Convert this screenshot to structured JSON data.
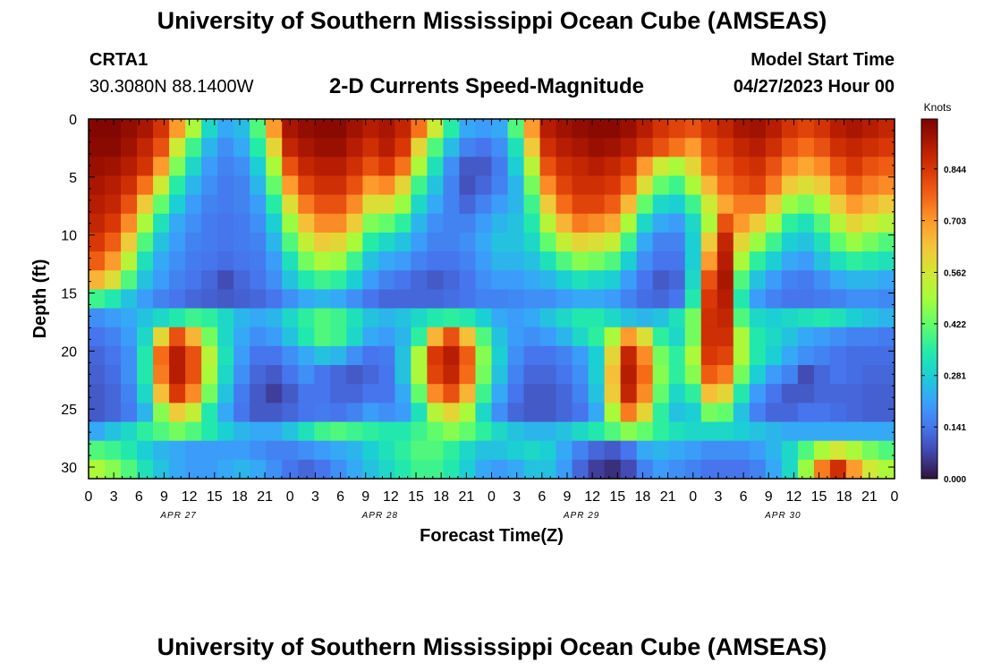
{
  "header": {
    "title": "University of Southern Mississippi Ocean Cube (AMSEAS)",
    "station": "CRTA1",
    "coords": "30.3080N  88.1400W",
    "subtitle": "2-D Currents Speed-Magnitude",
    "model_label": "Model Start Time",
    "model_time": "04/27/2023 Hour 00"
  },
  "footer": {
    "title": "University of Southern Mississippi Ocean Cube (AMSEAS)"
  },
  "colors": {
    "colormap": [
      "#30123b",
      "#4145ab",
      "#4675ed",
      "#39a2fc",
      "#1bcfd4",
      "#24eca6",
      "#61fc6c",
      "#a4fc3b",
      "#d1e834",
      "#f3c63a",
      "#fe9b2d",
      "#f36315",
      "#d93806",
      "#b11901",
      "#7a0402"
    ]
  },
  "chart_data": {
    "type": "heatmap",
    "title": "2-D Currents Speed-Magnitude",
    "xlabel": "Forecast Time(Z)",
    "ylabel": "Depth (ft)",
    "colorbar_label": "Knots",
    "colorbar_ticks": [
      "0.844",
      "0.703",
      "0.562",
      "0.422",
      "0.281",
      "0.141",
      "0.000"
    ],
    "colorbar_values": [
      0.844,
      0.703,
      0.562,
      0.422,
      0.281,
      0.141,
      0.0
    ],
    "zlim": [
      0,
      0.98
    ],
    "x_tick_labels": [
      "0",
      "3",
      "6",
      "9",
      "12",
      "15",
      "18",
      "21",
      "0",
      "3",
      "6",
      "9",
      "12",
      "15",
      "18",
      "21",
      "0",
      "3",
      "6",
      "9",
      "12",
      "15",
      "18",
      "21",
      "0",
      "3",
      "6",
      "9",
      "12",
      "15",
      "18",
      "21",
      "0"
    ],
    "x_hours": [
      0,
      3,
      6,
      9,
      12,
      15,
      18,
      21,
      24,
      27,
      30,
      33,
      36,
      39,
      42,
      45,
      48,
      51,
      54,
      57,
      60,
      63,
      66,
      69,
      72,
      75,
      78,
      81,
      84,
      87,
      90,
      93,
      96
    ],
    "day_labels": [
      {
        "label": "APR 27",
        "hour": 12
      },
      {
        "label": "APR 28",
        "hour": 36
      },
      {
        "label": "APR 29",
        "hour": 60
      },
      {
        "label": "APR 30",
        "hour": 84
      }
    ],
    "y_tick_labels": [
      "0",
      "5",
      "10",
      "15",
      "20",
      "25",
      "30"
    ],
    "y_values": [
      0,
      5,
      10,
      15,
      20,
      25,
      30
    ],
    "xlim": [
      0,
      96
    ],
    "ylim": [
      31,
      0
    ],
    "speed_knots": [
      [
        0.97,
        0.97,
        0.95,
        0.92,
        0.85,
        0.7,
        0.5,
        0.3,
        0.22,
        0.25,
        0.4,
        0.7,
        0.92,
        0.95,
        0.96,
        0.96,
        0.93,
        0.9,
        0.92,
        0.88,
        0.75,
        0.55,
        0.35,
        0.22,
        0.2,
        0.22,
        0.4,
        0.7,
        0.9,
        0.93,
        0.95,
        0.96,
        0.96,
        0.94,
        0.9,
        0.85,
        0.82,
        0.8,
        0.85,
        0.88,
        0.92,
        0.93,
        0.9,
        0.85,
        0.82,
        0.85,
        0.9,
        0.92,
        0.9,
        0.88
      ],
      [
        0.96,
        0.96,
        0.93,
        0.88,
        0.8,
        0.55,
        0.38,
        0.24,
        0.18,
        0.22,
        0.35,
        0.6,
        0.88,
        0.92,
        0.94,
        0.94,
        0.9,
        0.86,
        0.9,
        0.84,
        0.6,
        0.4,
        0.25,
        0.16,
        0.14,
        0.18,
        0.32,
        0.62,
        0.86,
        0.9,
        0.92,
        0.94,
        0.93,
        0.9,
        0.85,
        0.8,
        0.75,
        0.7,
        0.8,
        0.84,
        0.88,
        0.9,
        0.86,
        0.8,
        0.76,
        0.8,
        0.86,
        0.88,
        0.86,
        0.84
      ],
      [
        0.94,
        0.93,
        0.9,
        0.85,
        0.7,
        0.45,
        0.3,
        0.2,
        0.16,
        0.18,
        0.28,
        0.5,
        0.8,
        0.88,
        0.9,
        0.9,
        0.86,
        0.8,
        0.84,
        0.75,
        0.5,
        0.32,
        0.18,
        0.1,
        0.1,
        0.15,
        0.28,
        0.52,
        0.8,
        0.86,
        0.88,
        0.9,
        0.88,
        0.84,
        0.7,
        0.55,
        0.5,
        0.6,
        0.75,
        0.8,
        0.84,
        0.86,
        0.8,
        0.72,
        0.68,
        0.72,
        0.8,
        0.84,
        0.8,
        0.78
      ],
      [
        0.92,
        0.9,
        0.86,
        0.75,
        0.55,
        0.35,
        0.24,
        0.18,
        0.15,
        0.16,
        0.24,
        0.42,
        0.7,
        0.82,
        0.86,
        0.86,
        0.8,
        0.7,
        0.72,
        0.6,
        0.38,
        0.26,
        0.16,
        0.09,
        0.12,
        0.16,
        0.24,
        0.44,
        0.72,
        0.82,
        0.86,
        0.86,
        0.84,
        0.76,
        0.58,
        0.42,
        0.38,
        0.5,
        0.65,
        0.76,
        0.8,
        0.82,
        0.74,
        0.62,
        0.58,
        0.62,
        0.72,
        0.78,
        0.74,
        0.72
      ],
      [
        0.9,
        0.88,
        0.8,
        0.62,
        0.42,
        0.28,
        0.2,
        0.16,
        0.15,
        0.16,
        0.2,
        0.35,
        0.58,
        0.74,
        0.8,
        0.8,
        0.72,
        0.58,
        0.58,
        0.48,
        0.3,
        0.22,
        0.16,
        0.12,
        0.16,
        0.2,
        0.24,
        0.38,
        0.62,
        0.76,
        0.82,
        0.82,
        0.78,
        0.65,
        0.42,
        0.3,
        0.28,
        0.38,
        0.55,
        0.68,
        0.74,
        0.74,
        0.62,
        0.48,
        0.44,
        0.5,
        0.62,
        0.7,
        0.66,
        0.62
      ],
      [
        0.88,
        0.84,
        0.72,
        0.5,
        0.32,
        0.22,
        0.18,
        0.15,
        0.14,
        0.15,
        0.18,
        0.28,
        0.48,
        0.64,
        0.72,
        0.72,
        0.62,
        0.45,
        0.42,
        0.36,
        0.24,
        0.18,
        0.16,
        0.16,
        0.2,
        0.24,
        0.26,
        0.34,
        0.52,
        0.66,
        0.74,
        0.72,
        0.68,
        0.5,
        0.3,
        0.22,
        0.2,
        0.3,
        0.5,
        0.8,
        0.7,
        0.62,
        0.5,
        0.36,
        0.32,
        0.4,
        0.52,
        0.6,
        0.56,
        0.52
      ],
      [
        0.84,
        0.78,
        0.62,
        0.4,
        0.26,
        0.2,
        0.16,
        0.15,
        0.14,
        0.15,
        0.16,
        0.24,
        0.4,
        0.54,
        0.62,
        0.6,
        0.5,
        0.35,
        0.3,
        0.26,
        0.2,
        0.16,
        0.16,
        0.18,
        0.22,
        0.26,
        0.26,
        0.3,
        0.42,
        0.54,
        0.6,
        0.58,
        0.54,
        0.38,
        0.22,
        0.16,
        0.16,
        0.28,
        0.62,
        0.88,
        0.6,
        0.48,
        0.38,
        0.28,
        0.26,
        0.32,
        0.42,
        0.48,
        0.44,
        0.4
      ],
      [
        0.78,
        0.7,
        0.52,
        0.32,
        0.22,
        0.18,
        0.15,
        0.14,
        0.13,
        0.14,
        0.15,
        0.2,
        0.32,
        0.44,
        0.5,
        0.48,
        0.38,
        0.26,
        0.22,
        0.2,
        0.16,
        0.14,
        0.14,
        0.16,
        0.2,
        0.24,
        0.24,
        0.26,
        0.32,
        0.4,
        0.46,
        0.44,
        0.4,
        0.28,
        0.18,
        0.14,
        0.14,
        0.28,
        0.7,
        0.9,
        0.5,
        0.36,
        0.28,
        0.22,
        0.2,
        0.26,
        0.32,
        0.36,
        0.34,
        0.32
      ],
      [
        0.66,
        0.58,
        0.4,
        0.26,
        0.2,
        0.16,
        0.14,
        0.12,
        0.08,
        0.12,
        0.14,
        0.18,
        0.26,
        0.34,
        0.38,
        0.36,
        0.28,
        0.2,
        0.16,
        0.14,
        0.12,
        0.1,
        0.12,
        0.14,
        0.18,
        0.2,
        0.2,
        0.22,
        0.24,
        0.28,
        0.32,
        0.3,
        0.28,
        0.2,
        0.14,
        0.1,
        0.12,
        0.3,
        0.8,
        0.92,
        0.4,
        0.26,
        0.2,
        0.16,
        0.15,
        0.18,
        0.22,
        0.24,
        0.24,
        0.22
      ],
      [
        0.38,
        0.34,
        0.26,
        0.2,
        0.16,
        0.14,
        0.12,
        0.11,
        0.1,
        0.11,
        0.12,
        0.14,
        0.18,
        0.22,
        0.24,
        0.22,
        0.18,
        0.14,
        0.12,
        0.12,
        0.12,
        0.12,
        0.13,
        0.14,
        0.16,
        0.16,
        0.17,
        0.18,
        0.18,
        0.2,
        0.22,
        0.22,
        0.2,
        0.16,
        0.13,
        0.12,
        0.14,
        0.34,
        0.84,
        0.9,
        0.34,
        0.2,
        0.16,
        0.14,
        0.14,
        0.15,
        0.16,
        0.18,
        0.18,
        0.17
      ],
      [
        0.18,
        0.2,
        0.22,
        0.26,
        0.3,
        0.34,
        0.38,
        0.36,
        0.3,
        0.24,
        0.22,
        0.24,
        0.3,
        0.36,
        0.4,
        0.38,
        0.32,
        0.26,
        0.24,
        0.26,
        0.3,
        0.34,
        0.36,
        0.34,
        0.28,
        0.22,
        0.2,
        0.22,
        0.26,
        0.3,
        0.34,
        0.34,
        0.3,
        0.26,
        0.24,
        0.26,
        0.32,
        0.44,
        0.86,
        0.88,
        0.4,
        0.3,
        0.28,
        0.3,
        0.32,
        0.34,
        0.32,
        0.28,
        0.26,
        0.24
      ],
      [
        0.14,
        0.16,
        0.2,
        0.3,
        0.6,
        0.8,
        0.66,
        0.44,
        0.3,
        0.22,
        0.18,
        0.2,
        0.26,
        0.34,
        0.4,
        0.38,
        0.3,
        0.22,
        0.2,
        0.24,
        0.36,
        0.66,
        0.8,
        0.64,
        0.4,
        0.26,
        0.2,
        0.18,
        0.2,
        0.24,
        0.3,
        0.36,
        0.5,
        0.7,
        0.58,
        0.36,
        0.3,
        0.44,
        0.86,
        0.86,
        0.5,
        0.34,
        0.3,
        0.26,
        0.22,
        0.2,
        0.18,
        0.16,
        0.16,
        0.15
      ],
      [
        0.12,
        0.14,
        0.18,
        0.34,
        0.76,
        0.9,
        0.8,
        0.52,
        0.32,
        0.2,
        0.14,
        0.14,
        0.18,
        0.22,
        0.26,
        0.24,
        0.18,
        0.14,
        0.15,
        0.26,
        0.5,
        0.84,
        0.9,
        0.78,
        0.46,
        0.28,
        0.18,
        0.14,
        0.14,
        0.16,
        0.2,
        0.28,
        0.6,
        0.88,
        0.72,
        0.44,
        0.36,
        0.5,
        0.84,
        0.82,
        0.5,
        0.34,
        0.28,
        0.22,
        0.18,
        0.16,
        0.14,
        0.13,
        0.13,
        0.13
      ],
      [
        0.11,
        0.13,
        0.18,
        0.34,
        0.74,
        0.9,
        0.8,
        0.5,
        0.3,
        0.18,
        0.12,
        0.1,
        0.14,
        0.18,
        0.14,
        0.12,
        0.1,
        0.12,
        0.14,
        0.26,
        0.5,
        0.82,
        0.88,
        0.76,
        0.44,
        0.26,
        0.16,
        0.12,
        0.12,
        0.14,
        0.18,
        0.28,
        0.64,
        0.9,
        0.76,
        0.46,
        0.36,
        0.46,
        0.78,
        0.74,
        0.44,
        0.28,
        0.2,
        0.16,
        0.08,
        0.12,
        0.14,
        0.13,
        0.12,
        0.12
      ],
      [
        0.1,
        0.12,
        0.16,
        0.3,
        0.64,
        0.84,
        0.72,
        0.44,
        0.26,
        0.15,
        0.1,
        0.06,
        0.1,
        0.14,
        0.14,
        0.12,
        0.12,
        0.14,
        0.14,
        0.22,
        0.42,
        0.72,
        0.8,
        0.66,
        0.38,
        0.22,
        0.14,
        0.1,
        0.1,
        0.12,
        0.16,
        0.26,
        0.62,
        0.88,
        0.72,
        0.42,
        0.3,
        0.36,
        0.64,
        0.6,
        0.34,
        0.2,
        0.14,
        0.1,
        0.1,
        0.12,
        0.12,
        0.12,
        0.11,
        0.11
      ],
      [
        0.1,
        0.12,
        0.15,
        0.24,
        0.46,
        0.62,
        0.54,
        0.34,
        0.22,
        0.14,
        0.1,
        0.1,
        0.12,
        0.14,
        0.15,
        0.14,
        0.16,
        0.2,
        0.18,
        0.2,
        0.32,
        0.52,
        0.6,
        0.5,
        0.3,
        0.18,
        0.12,
        0.1,
        0.1,
        0.12,
        0.14,
        0.22,
        0.5,
        0.74,
        0.6,
        0.36,
        0.26,
        0.28,
        0.44,
        0.42,
        0.26,
        0.16,
        0.12,
        0.12,
        0.14,
        0.14,
        0.13,
        0.12,
        0.11,
        0.11
      ],
      [
        0.22,
        0.26,
        0.3,
        0.36,
        0.4,
        0.44,
        0.4,
        0.34,
        0.28,
        0.24,
        0.22,
        0.22,
        0.26,
        0.32,
        0.38,
        0.4,
        0.38,
        0.36,
        0.34,
        0.34,
        0.38,
        0.42,
        0.46,
        0.42,
        0.36,
        0.3,
        0.26,
        0.24,
        0.24,
        0.26,
        0.3,
        0.34,
        0.4,
        0.46,
        0.42,
        0.36,
        0.32,
        0.3,
        0.3,
        0.3,
        0.28,
        0.26,
        0.24,
        0.22,
        0.22,
        0.22,
        0.22,
        0.22,
        0.22,
        0.22
      ],
      [
        0.4,
        0.38,
        0.34,
        0.28,
        0.24,
        0.22,
        0.2,
        0.2,
        0.2,
        0.2,
        0.18,
        0.16,
        0.16,
        0.18,
        0.2,
        0.22,
        0.24,
        0.28,
        0.32,
        0.36,
        0.4,
        0.4,
        0.36,
        0.3,
        0.26,
        0.26,
        0.28,
        0.3,
        0.28,
        0.22,
        0.16,
        0.12,
        0.1,
        0.14,
        0.22,
        0.24,
        0.22,
        0.2,
        0.18,
        0.18,
        0.18,
        0.2,
        0.24,
        0.3,
        0.4,
        0.5,
        0.56,
        0.5,
        0.44,
        0.4
      ],
      [
        0.5,
        0.46,
        0.4,
        0.32,
        0.26,
        0.22,
        0.2,
        0.2,
        0.22,
        0.24,
        0.22,
        0.18,
        0.14,
        0.12,
        0.14,
        0.18,
        0.22,
        0.26,
        0.3,
        0.34,
        0.38,
        0.38,
        0.34,
        0.28,
        0.22,
        0.2,
        0.22,
        0.26,
        0.26,
        0.2,
        0.12,
        0.06,
        0.04,
        0.08,
        0.16,
        0.2,
        0.18,
        0.16,
        0.14,
        0.14,
        0.14,
        0.16,
        0.22,
        0.3,
        0.48,
        0.74,
        0.86,
        0.7,
        0.56,
        0.5
      ]
    ]
  }
}
